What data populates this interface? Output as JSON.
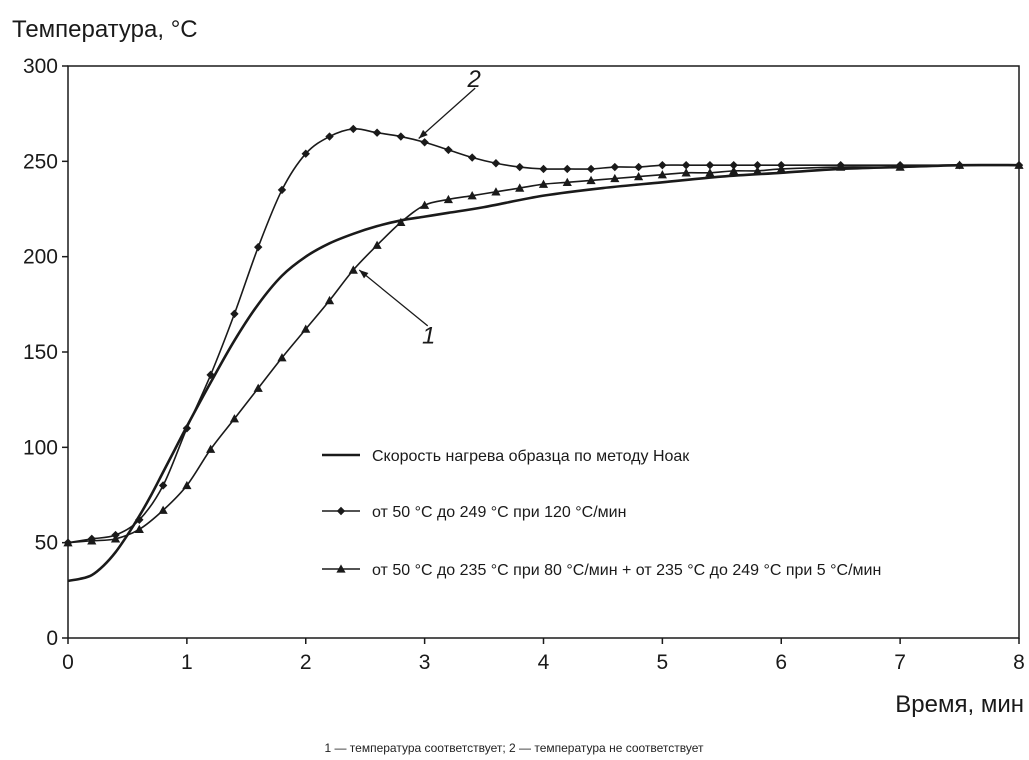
{
  "chart_data": {
    "type": "line",
    "ylabel": "Температура, °С",
    "xlabel": "Время, мин",
    "xlim": [
      0,
      8
    ],
    "ylim": [
      0,
      300
    ],
    "x_ticks": [
      0,
      1,
      2,
      3,
      4,
      5,
      6,
      7,
      8
    ],
    "y_ticks": [
      0,
      50,
      100,
      150,
      200,
      250,
      300
    ],
    "grid": false,
    "legend_position": "center-right",
    "caption": "1 — температура соответствует; 2 — температура не соответствует",
    "annotations": [
      {
        "label": "2",
        "series": 1,
        "point": [
          2.95,
          262
        ],
        "text_at": [
          3.4,
          287
        ]
      },
      {
        "label": "1",
        "series": 2,
        "point": [
          2.45,
          193
        ],
        "text_at": [
          3.0,
          165
        ]
      }
    ],
    "series": [
      {
        "name": "Скорость нагрева образца по методу Ноак",
        "marker": "none",
        "x": [
          0,
          0.1,
          0.2,
          0.3,
          0.4,
          0.5,
          0.6,
          0.7,
          0.8,
          0.9,
          1.0,
          1.2,
          1.4,
          1.6,
          1.8,
          2.0,
          2.2,
          2.4,
          2.6,
          2.8,
          3.0,
          3.2,
          3.5,
          4.0,
          4.5,
          5.0,
          5.5,
          6.0,
          6.5,
          7.0,
          7.5,
          8.0
        ],
        "y": [
          30,
          31,
          33,
          38,
          45,
          54,
          64,
          75,
          87,
          99,
          111,
          134,
          156,
          175,
          190,
          200,
          207,
          212,
          216,
          219,
          221,
          223,
          226,
          232,
          236,
          239,
          242,
          244,
          246,
          247,
          248,
          248
        ]
      },
      {
        "name": "от 50 °С до 249 °С при 120 °С/мин",
        "marker": "diamond",
        "x": [
          0,
          0.2,
          0.4,
          0.6,
          0.8,
          1.0,
          1.2,
          1.4,
          1.6,
          1.8,
          2.0,
          2.2,
          2.4,
          2.6,
          2.8,
          3.0,
          3.2,
          3.4,
          3.6,
          3.8,
          4.0,
          4.2,
          4.4,
          4.6,
          4.8,
          5.0,
          5.2,
          5.4,
          5.6,
          5.8,
          6.0,
          6.5,
          7.0,
          7.5,
          8.0
        ],
        "y": [
          50,
          52,
          54,
          62,
          80,
          110,
          138,
          170,
          205,
          235,
          254,
          263,
          267,
          265,
          263,
          260,
          256,
          252,
          249,
          247,
          246,
          246,
          246,
          247,
          247,
          248,
          248,
          248,
          248,
          248,
          248,
          248,
          248,
          248,
          248
        ]
      },
      {
        "name": "от 50 °С до 235 °С при 80 °С/мин + от 235 °С до 249 °С при 5 °С/мин",
        "marker": "triangle",
        "x": [
          0,
          0.2,
          0.4,
          0.6,
          0.8,
          1.0,
          1.2,
          1.4,
          1.6,
          1.8,
          2.0,
          2.2,
          2.4,
          2.6,
          2.8,
          3.0,
          3.2,
          3.4,
          3.6,
          3.8,
          4.0,
          4.2,
          4.4,
          4.6,
          4.8,
          5.0,
          5.2,
          5.4,
          5.6,
          5.8,
          6.0,
          6.5,
          7.0,
          7.5,
          8.0
        ],
        "y": [
          50,
          51,
          52,
          57,
          67,
          80,
          99,
          115,
          131,
          147,
          162,
          177,
          193,
          206,
          218,
          227,
          230,
          232,
          234,
          236,
          238,
          239,
          240,
          241,
          242,
          243,
          244,
          244,
          245,
          245,
          246,
          247,
          247,
          248,
          248
        ]
      }
    ]
  }
}
